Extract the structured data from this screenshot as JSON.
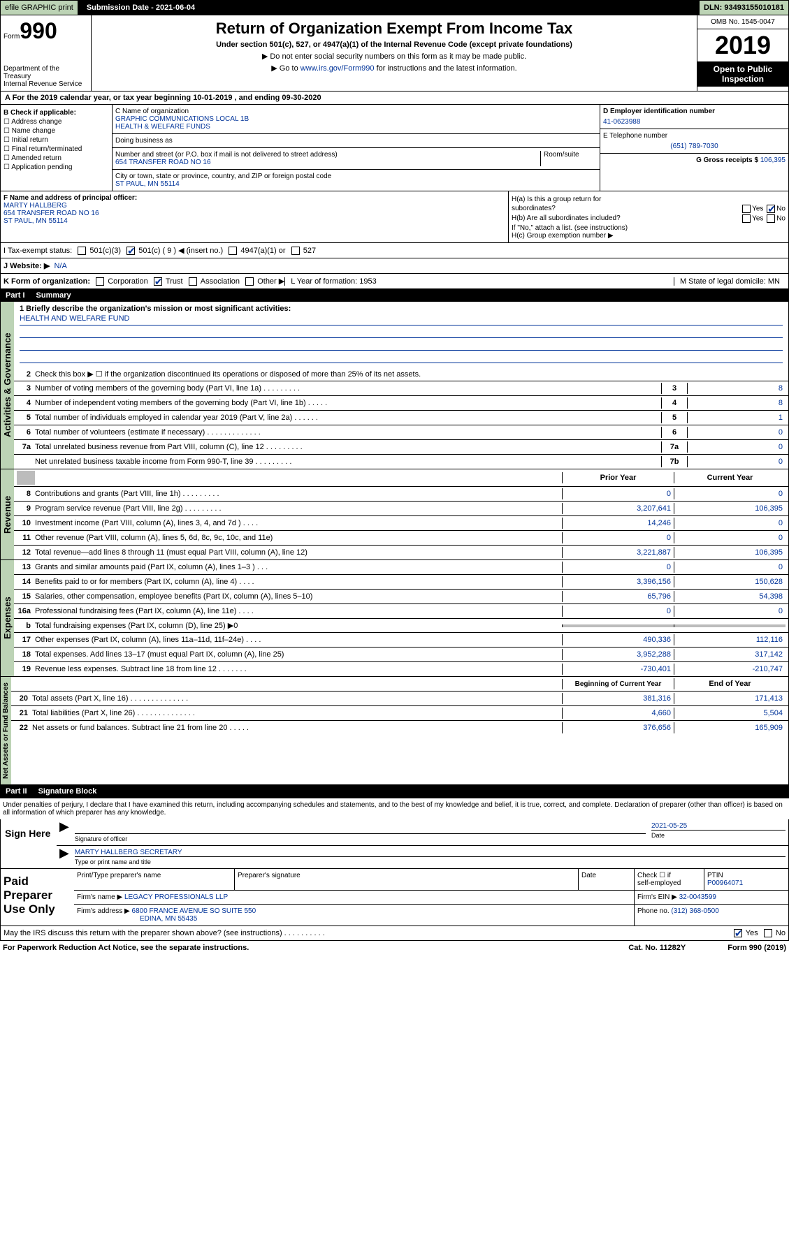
{
  "topbar": {
    "efile": "efile GRAPHIC print",
    "submission": "Submission Date - 2021-06-04",
    "dln": "DLN: 93493155010181"
  },
  "header": {
    "form_word": "Form",
    "form_no": "990",
    "dept": "Department of the Treasury\nInternal Revenue Service",
    "title": "Return of Organization Exempt From Income Tax",
    "subtitle": "Under section 501(c), 527, or 4947(a)(1) of the Internal Revenue Code (except private foundations)",
    "note1": "▶ Do not enter social security numbers on this form as it may be made public.",
    "note2_a": "▶ Go to ",
    "note2_link": "www.irs.gov/Form990",
    "note2_b": " for instructions and the latest information.",
    "omb": "OMB No. 1545-0047",
    "year": "2019",
    "open": "Open to Public Inspection"
  },
  "period": "A For the 2019 calendar year, or tax year beginning 10-01-2019     , and ending 09-30-2020",
  "B": {
    "label": "B Check if applicable:",
    "items": [
      "☐ Address change",
      "☐ Name change",
      "☐ Initial return",
      "☐ Final return/terminated",
      "☐ Amended return",
      "☐ Application pending"
    ]
  },
  "C": {
    "name_label": "C Name of organization",
    "name": "GRAPHIC COMMUNICATIONS LOCAL 1B\nHEALTH & WELFARE FUNDS",
    "dba_label": "Doing business as",
    "dba": "",
    "addr_label": "Number and street (or P.O. box if mail is not delivered to street address)",
    "addr": "654 TRANSFER ROAD NO 16",
    "room_label": "Room/suite",
    "city_label": "City or town, state or province, country, and ZIP or foreign postal code",
    "city": "ST PAUL, MN  55114"
  },
  "D": {
    "label": "D Employer identification number",
    "val": "41-0623988"
  },
  "E": {
    "label": "E Telephone number",
    "val": "(651) 789-7030"
  },
  "G": {
    "label": "G Gross receipts $ ",
    "val": "106,395"
  },
  "F": {
    "label": "F Name and address of principal officer:",
    "name": "MARTY HALLBERG",
    "addr1": "654 TRANSFER ROAD NO 16",
    "addr2": "ST PAUL, MN  55114"
  },
  "H": {
    "a1": "H(a)  Is this a group return for",
    "a2": "subordinates?",
    "b": "H(b)  Are all subordinates included?",
    "note": "If \"No,\" attach a list. (see instructions)",
    "c": "H(c)  Group exemption number ▶",
    "yes": "Yes",
    "no": "No"
  },
  "I": {
    "label": "I   Tax-exempt status:",
    "o1": "501(c)(3)",
    "o2": "501(c) ( 9 ) ◀ (insert no.)",
    "o3": "4947(a)(1) or",
    "o4": "527"
  },
  "J": {
    "label": "J   Website: ▶",
    "val": "N/A"
  },
  "K": {
    "label": "K Form of organization:",
    "o1": "Corporation",
    "o2": "Trust",
    "o3": "Association",
    "o4": "Other ▶",
    "L": "L Year of formation: 1953",
    "M": "M State of legal domicile: MN"
  },
  "part1": {
    "num": "Part I",
    "title": "Summary"
  },
  "mission": {
    "label": "1  Briefly describe the organization's mission or most significant activities:",
    "text": "HEALTH AND WELFARE FUND"
  },
  "gov": {
    "tab": "Activities & Governance",
    "r2": "Check this box ▶ ☐  if the organization discontinued its operations or disposed of more than 25% of its net assets.",
    "rows": [
      {
        "n": "3",
        "t": "Number of voting members of the governing body (Part VI, line 1a)   .    .    .    .    .    .    .    .    .",
        "box": "3",
        "v": "8"
      },
      {
        "n": "4",
        "t": "Number of independent voting members of the governing body (Part VI, line 1b)   .    .    .    .    .",
        "box": "4",
        "v": "8"
      },
      {
        "n": "5",
        "t": "Total number of individuals employed in calendar year 2019 (Part V, line 2a)   .    .    .    .    .    .",
        "box": "5",
        "v": "1"
      },
      {
        "n": "6",
        "t": "Total number of volunteers (estimate if necessary)   .    .    .    .    .    .    .    .    .    .    .    .    .",
        "box": "6",
        "v": "0"
      },
      {
        "n": "7a",
        "t": "Total unrelated business revenue from Part VIII, column (C), line 12   .    .    .    .    .    .    .    .    .",
        "box": "7a",
        "v": "0"
      },
      {
        "n": "",
        "t": "Net unrelated business taxable income from Form 990-T, line 39   .    .    .    .    .    .    .    .    .",
        "box": "7b",
        "v": "0"
      }
    ]
  },
  "rev": {
    "tab": "Revenue",
    "hdr_prior": "Prior Year",
    "hdr_curr": "Current Year",
    "rows": [
      {
        "n": "8",
        "t": "Contributions and grants (Part VIII, line 1h)   .    .    .    .    .    .    .    .    .",
        "p": "0",
        "c": "0"
      },
      {
        "n": "9",
        "t": "Program service revenue (Part VIII, line 2g)   .    .    .    .    .    .    .    .    .",
        "p": "3,207,641",
        "c": "106,395"
      },
      {
        "n": "10",
        "t": "Investment income (Part VIII, column (A), lines 3, 4, and 7d )   .    .    .    .",
        "p": "14,246",
        "c": "0"
      },
      {
        "n": "11",
        "t": "Other revenue (Part VIII, column (A), lines 5, 6d, 8c, 9c, 10c, and 11e)",
        "p": "0",
        "c": "0"
      },
      {
        "n": "12",
        "t": "Total revenue—add lines 8 through 11 (must equal Part VIII, column (A), line 12)",
        "p": "3,221,887",
        "c": "106,395"
      }
    ]
  },
  "exp": {
    "tab": "Expenses",
    "rows": [
      {
        "n": "13",
        "t": "Grants and similar amounts paid (Part IX, column (A), lines 1–3 )   .    .    .",
        "p": "0",
        "c": "0"
      },
      {
        "n": "14",
        "t": "Benefits paid to or for members (Part IX, column (A), line 4)   .    .    .    .",
        "p": "3,396,156",
        "c": "150,628"
      },
      {
        "n": "15",
        "t": "Salaries, other compensation, employee benefits (Part IX, column (A), lines 5–10)",
        "p": "65,796",
        "c": "54,398"
      },
      {
        "n": "16a",
        "t": "Professional fundraising fees (Part IX, column (A), line 11e)   .    .    .    .",
        "p": "0",
        "c": "0"
      },
      {
        "n": "b",
        "t": "Total fundraising expenses (Part IX, column (D), line 25) ▶0",
        "p": "",
        "c": "",
        "shaded": true
      },
      {
        "n": "17",
        "t": "Other expenses (Part IX, column (A), lines 11a–11d, 11f–24e)   .    .    .    .",
        "p": "490,336",
        "c": "112,116"
      },
      {
        "n": "18",
        "t": "Total expenses. Add lines 13–17 (must equal Part IX, column (A), line 25)",
        "p": "3,952,288",
        "c": "317,142"
      },
      {
        "n": "19",
        "t": "Revenue less expenses. Subtract line 18 from line 12   .    .    .    .    .    .    .",
        "p": "-730,401",
        "c": "-210,747"
      }
    ]
  },
  "net": {
    "tab": "Net Assets or Fund Balances",
    "hdr_beg": "Beginning of Current Year",
    "hdr_end": "End of Year",
    "rows": [
      {
        "n": "20",
        "t": "Total assets (Part X, line 16)   .    .    .    .    .    .    .    .    .    .    .    .    .    .",
        "p": "381,316",
        "c": "171,413"
      },
      {
        "n": "21",
        "t": "Total liabilities (Part X, line 26)   .    .    .    .    .    .    .    .    .    .    .    .    .    .",
        "p": "4,660",
        "c": "5,504"
      },
      {
        "n": "22",
        "t": "Net assets or fund balances. Subtract line 21 from line 20   .    .    .    .    .",
        "p": "376,656",
        "c": "165,909"
      }
    ]
  },
  "part2": {
    "num": "Part II",
    "title": "Signature Block"
  },
  "perjury": "Under penalties of perjury, I declare that I have examined this return, including accompanying schedules and statements, and to the best of my knowledge and belief, it is true, correct, and complete. Declaration of preparer (other than officer) is based on all information of which preparer has any knowledge.",
  "sign": {
    "here": "Sign Here",
    "sig_label": "Signature of officer",
    "date": "2021-05-25",
    "date_label": "Date",
    "name": "MARTY HALLBERG  SECRETARY",
    "name_label": "Type or print name and title"
  },
  "paid": {
    "label": "Paid Preparer Use Only",
    "h1": "Print/Type preparer's name",
    "h2": "Preparer's signature",
    "h3": "Date",
    "h4a": "Check ☐ if",
    "h4b": "self-employed",
    "h5": "PTIN",
    "ptin": "P00964071",
    "firm_label": "Firm's name     ▶",
    "firm": "LEGACY PROFESSIONALS LLP",
    "ein_label": "Firm's EIN ▶",
    "ein": "32-0043599",
    "addr_label": "Firm's address ▶",
    "addr1": "6800 FRANCE AVENUE SO SUITE 550",
    "addr2": "EDINA, MN  55435",
    "phone_label": "Phone no.",
    "phone": "(312) 368-0500"
  },
  "discuss": "May the IRS discuss this return with the preparer shown above? (see instructions)   .    .    .    .    .    .    .    .    .    .",
  "foot": {
    "a": "For Paperwork Reduction Act Notice, see the separate instructions.",
    "b": "Cat. No. 11282Y",
    "c": "Form 990 (2019)"
  }
}
